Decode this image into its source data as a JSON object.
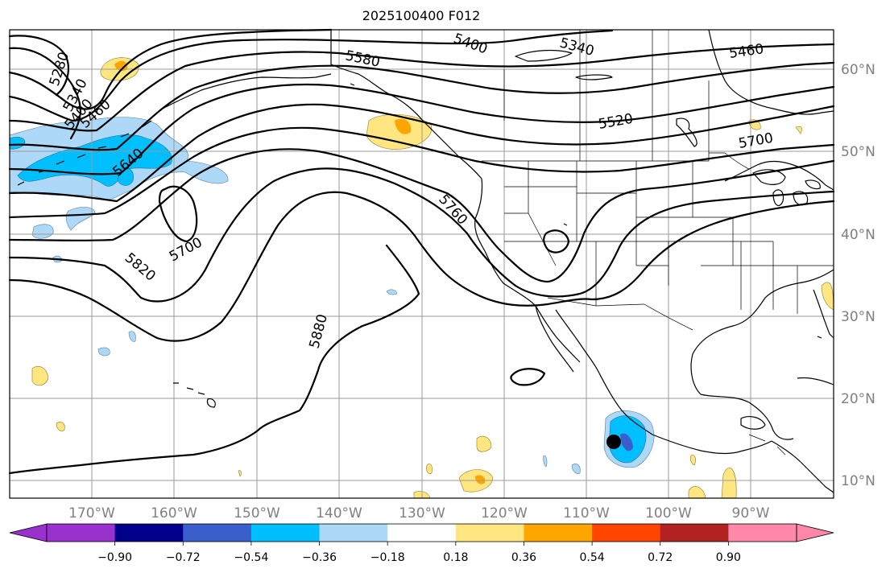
{
  "title": "2025100400 F012",
  "lon_labels": [
    "170°W",
    "160°W",
    "150°W",
    "140°W",
    "130°W",
    "120°W",
    "110°W",
    "100°W",
    "90°W"
  ],
  "lat_labels": [
    "60°N",
    "50°N",
    "40°N",
    "30°N",
    "20°N",
    "10°N"
  ],
  "contour_labels": [
    "5280",
    "5340",
    "5400",
    "5460",
    "5400",
    "5340",
    "5460",
    "5580",
    "5520",
    "5700",
    "5640",
    "5700",
    "5820",
    "5760",
    "5880"
  ],
  "colorbar": {
    "ticks": [
      "−0.90",
      "−0.72",
      "−0.54",
      "−0.36",
      "−0.18",
      "0.18",
      "0.36",
      "0.54",
      "0.72",
      "0.90"
    ],
    "colors": [
      "#9932cc",
      "#00008b",
      "#3a5fcd",
      "#00bfff",
      "#add8f7",
      "#ffffff",
      "#ffe680",
      "#ffa500",
      "#ff4500",
      "#b22222",
      "#ff88aa"
    ]
  },
  "marker": {
    "lon": -106.5,
    "lat": 14.8,
    "color": "#000000"
  }
}
